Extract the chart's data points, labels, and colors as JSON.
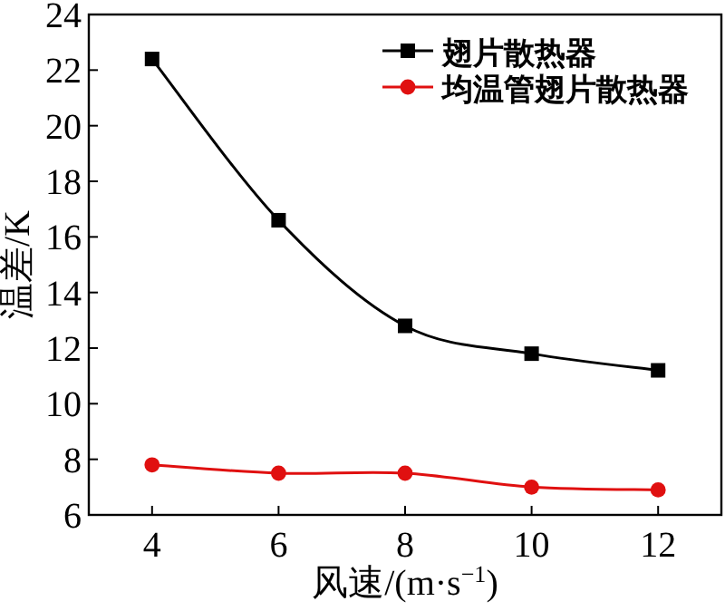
{
  "chart_data": {
    "type": "line",
    "xlabel": "风速/(m·s$^{−1}$)",
    "ylabel": "温差/K",
    "x": [
      4,
      6,
      8,
      10,
      12
    ],
    "xlim": [
      3,
      13
    ],
    "ylim": [
      6,
      24
    ],
    "xticks": [
      4,
      6,
      8,
      10,
      12
    ],
    "yticks": [
      6,
      8,
      10,
      12,
      14,
      16,
      18,
      20,
      22,
      24
    ],
    "legend": "top right",
    "grid": false,
    "line_style": "solid",
    "series": [
      {
        "name": "翅片散热器",
        "color": "#000000",
        "marker": "square",
        "values": [
          22.4,
          16.6,
          12.8,
          11.8,
          11.2
        ]
      },
      {
        "name": "均温管翅片散热器",
        "color": "#e01010",
        "marker": "circle",
        "values": [
          7.8,
          7.5,
          7.5,
          7.0,
          6.9
        ]
      }
    ]
  }
}
